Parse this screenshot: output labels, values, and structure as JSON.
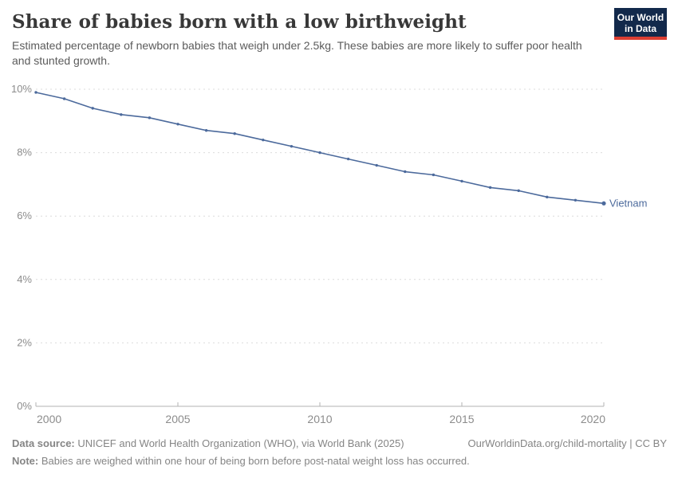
{
  "header": {
    "title": "Share of babies born with a low birthweight",
    "subtitle": "Estimated percentage of newborn babies that weigh under 2.5kg. These babies are more likely to suffer poor health and stunted growth."
  },
  "logo": {
    "line1": "Our World",
    "line2": "in Data",
    "bg_color": "#12294b",
    "bar_color": "#dc3e32"
  },
  "chart_data": {
    "type": "line",
    "title": "Share of babies born with a low birthweight",
    "x": [
      2000,
      2001,
      2002,
      2003,
      2004,
      2005,
      2006,
      2007,
      2008,
      2009,
      2010,
      2011,
      2012,
      2013,
      2014,
      2015,
      2016,
      2017,
      2018,
      2019,
      2020
    ],
    "series": [
      {
        "name": "Vietnam",
        "color": "#4c6a9c",
        "values": [
          9.9,
          9.7,
          9.4,
          9.2,
          9.1,
          8.9,
          8.7,
          8.6,
          8.4,
          8.2,
          8.0,
          7.8,
          7.6,
          7.4,
          7.3,
          7.1,
          6.9,
          6.8,
          6.6,
          6.5,
          6.4
        ]
      }
    ],
    "xlabel": "",
    "ylabel": "",
    "ylim": [
      0,
      10
    ],
    "yticks": [
      0,
      2,
      4,
      6,
      8,
      10
    ],
    "ytick_suffix": "%",
    "xticks": [
      2000,
      2005,
      2010,
      2015,
      2020
    ],
    "grid": "horizontal-dashed",
    "legend_position": "end-of-line",
    "colors": {
      "gridline": "#dcdcdc",
      "axis_line": "#b3b3b3",
      "tick_label": "#8c8c8c",
      "series_label": "#4c6a9c"
    }
  },
  "footer": {
    "datasource_label": "Data source:",
    "datasource_text": " UNICEF and World Health Organization (WHO), via World Bank (2025)",
    "link_text": "OurWorldinData.org/child-mortality | CC BY",
    "note_label": "Note:",
    "note_text": " Babies are weighed within one hour of being born before post-natal weight loss has occurred."
  }
}
